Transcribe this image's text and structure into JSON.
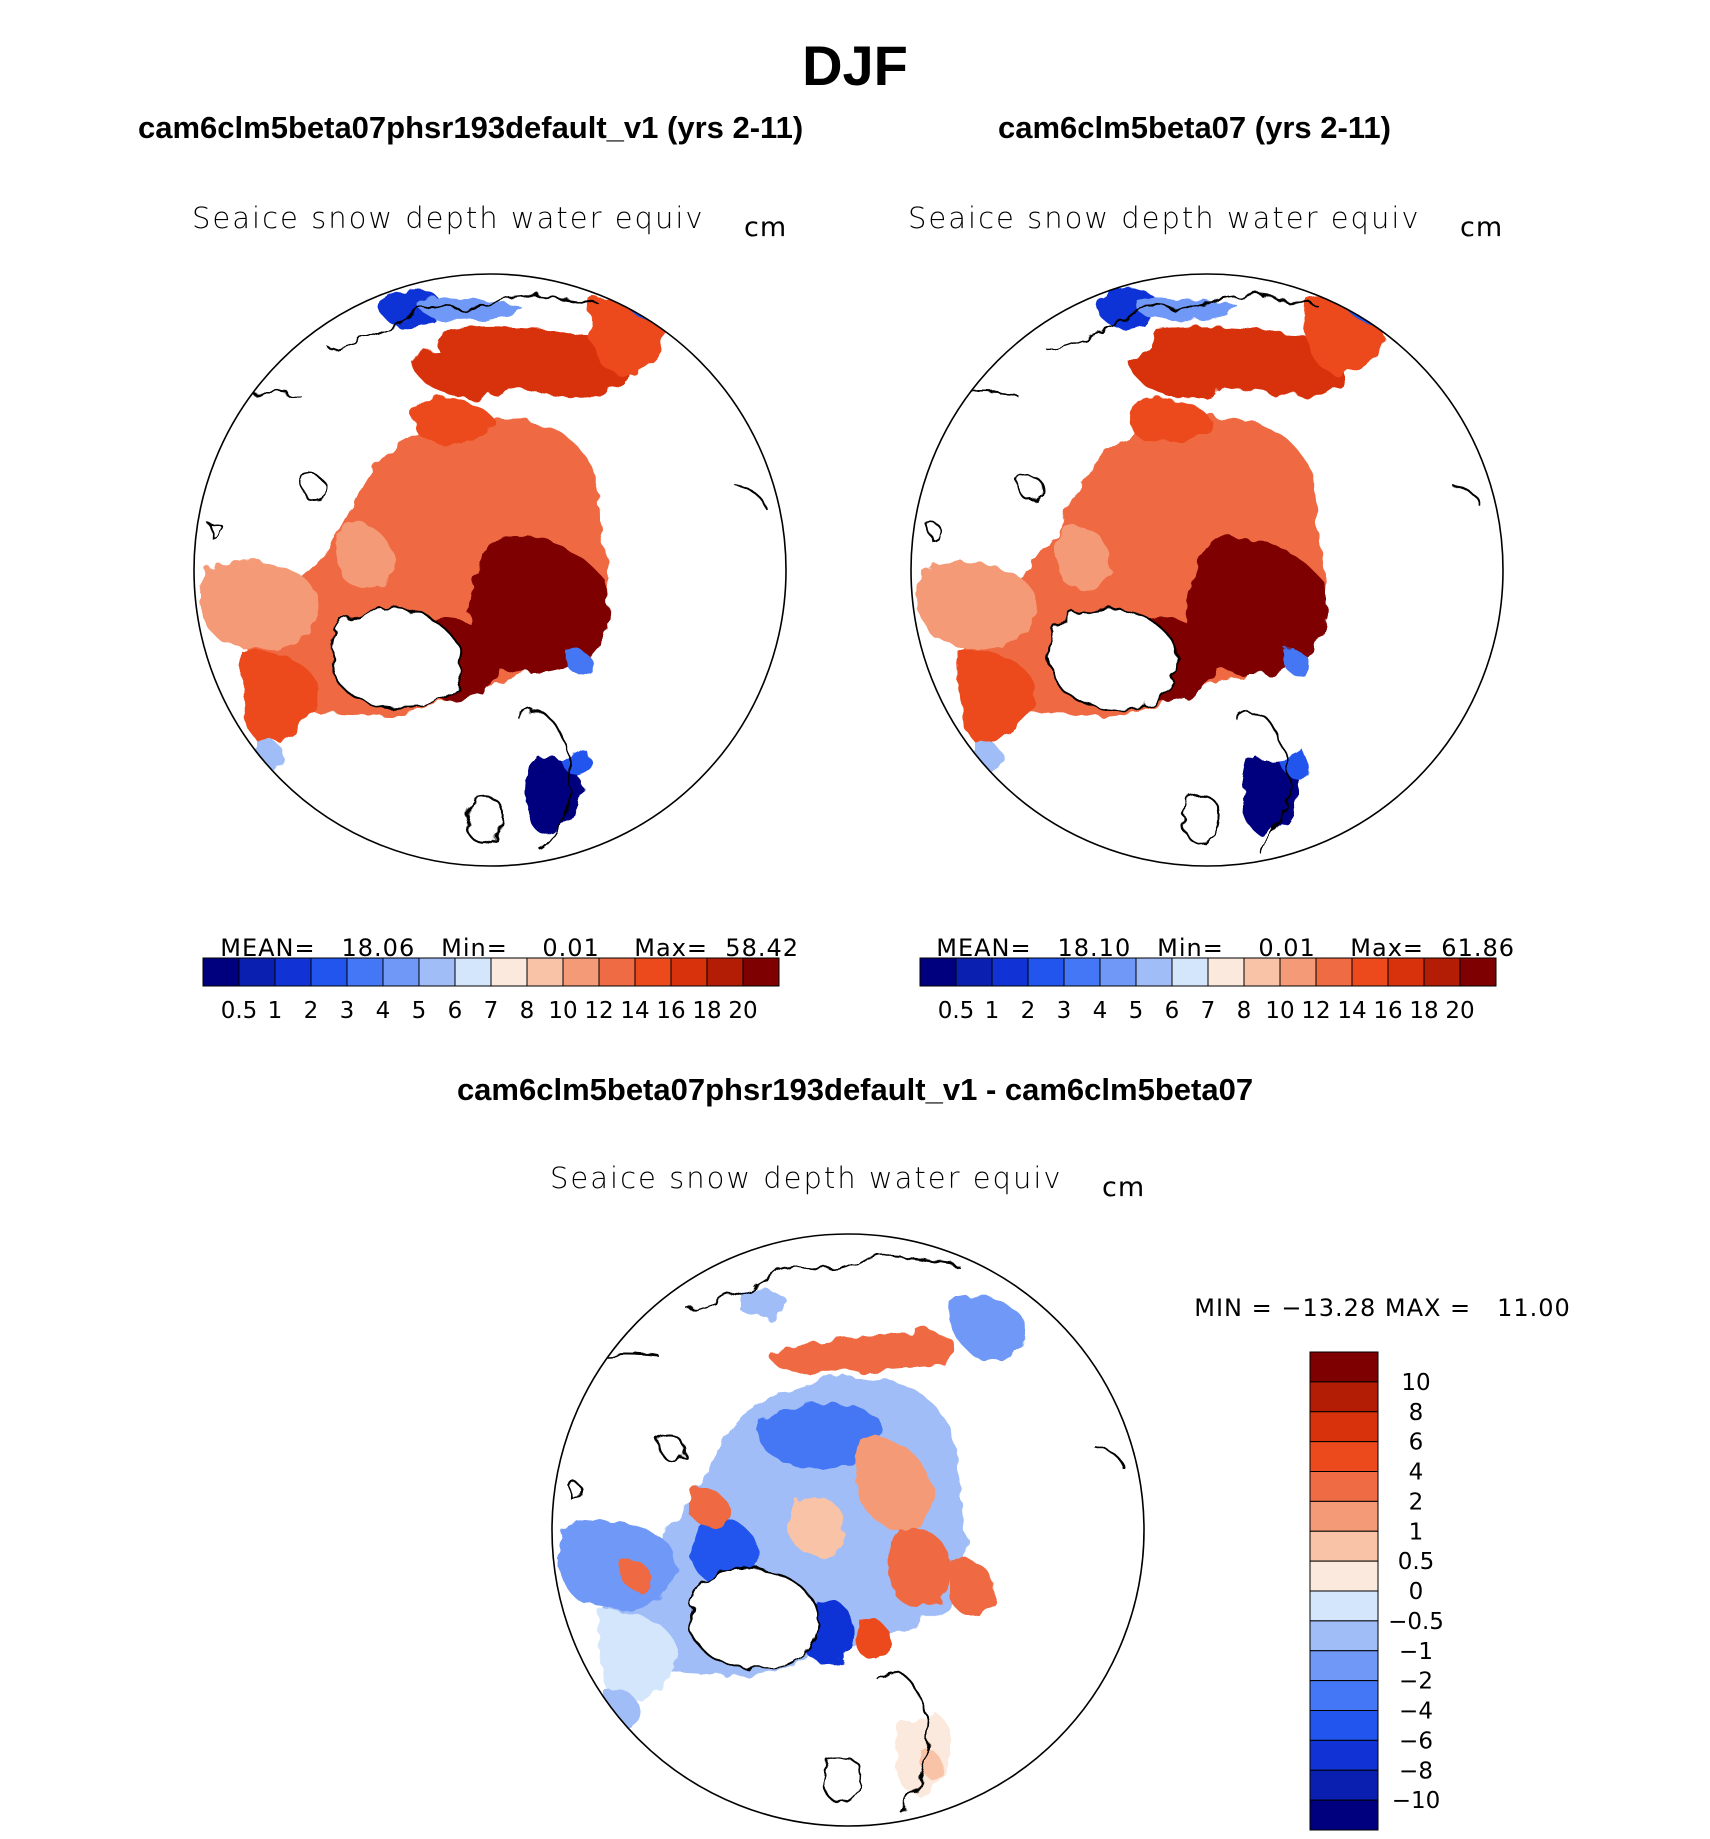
{
  "page": {
    "title": "DJF"
  },
  "panels": [
    {
      "title": "cam6clm5beta07phsr193default_v1 (yrs 2-11)",
      "variable": "Seaice snow depth water equiv",
      "units": "cm",
      "stats": {
        "mean_label": "MEAN=",
        "mean": "18.06",
        "min_label": "Min=",
        "min": "0.01",
        "max_label": "Max=",
        "max": "58.42"
      }
    },
    {
      "title": "cam6clm5beta07 (yrs 2-11)",
      "variable": "Seaice snow depth water equiv",
      "units": "cm",
      "stats": {
        "mean_label": "MEAN=",
        "mean": "18.10",
        "min_label": "Min=",
        "min": "0.01",
        "max_label": "Max=",
        "max": "61.86"
      }
    },
    {
      "title": "cam6clm5beta07phsr193default_v1 - cam6clm5beta07",
      "variable": "Seaice snow depth water equiv",
      "units": "cm",
      "stats": {
        "min_label": "MIN =",
        "min": "−13.28",
        "max_label": "MAX =",
        "max": "11.00"
      }
    }
  ],
  "colorbars": {
    "absolute": {
      "labels": [
        "0.5",
        "1",
        "2",
        "3",
        "4",
        "5",
        "6",
        "7",
        "8",
        "10",
        "12",
        "14",
        "16",
        "18",
        "20"
      ],
      "colors": [
        "#00007f",
        "#0a1fb0",
        "#1133d6",
        "#2255ee",
        "#4477f5",
        "#6f98f7",
        "#a0bdf7",
        "#d3e6fb",
        "#fce9dd",
        "#f9c3a8",
        "#f59a76",
        "#ef6b43",
        "#ec4a1d",
        "#d8320c",
        "#b31d06",
        "#7f0000"
      ]
    },
    "difference": {
      "labels": [
        "10",
        "8",
        "6",
        "4",
        "2",
        "1",
        "0.5",
        "0",
        "−0.5",
        "−1",
        "−2",
        "−4",
        "−6",
        "−8",
        "−10"
      ],
      "colors": [
        "#7f0000",
        "#b31d06",
        "#d8320c",
        "#ec4a1d",
        "#ef6b43",
        "#f59a76",
        "#f9c3a8",
        "#fce9dd",
        "#d3e6fb",
        "#a0bdf7",
        "#6f98f7",
        "#4477f5",
        "#2255ee",
        "#1133d6",
        "#0a1fb0",
        "#00007f"
      ]
    }
  },
  "maps": {
    "projection": "north-polar-stereographic",
    "panel1": {
      "dominant": "orange-red",
      "high_region": "dark red over Arctic basin",
      "low_region": "blue near margins"
    },
    "panel2": {
      "dominant": "orange-red",
      "high_region": "dark red over Arctic basin",
      "low_region": "blue near margins"
    },
    "diff": {
      "dominant": "mixed blue and red",
      "note": "blue over central Arctic, red patches near margins"
    }
  }
}
